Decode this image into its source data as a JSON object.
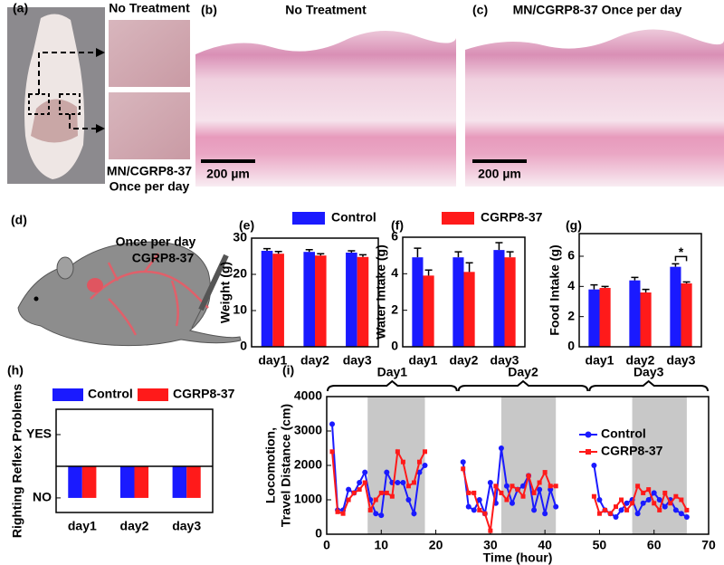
{
  "panels": {
    "a": {
      "label": "(a)",
      "top": "No Treatment",
      "bottom": [
        "MN/CGRP8-37",
        "Once per day"
      ]
    },
    "b": {
      "label": "(b)",
      "title": "No Treatment",
      "scale_bar": "200 µm"
    },
    "c": {
      "label": "(c)",
      "title": "MN/CGRP8-37 Once per day",
      "scale_bar": "200 µm"
    },
    "d": {
      "label": "(d)",
      "dose": "Once per day",
      "drug": "CGRP8-37"
    }
  },
  "chart_data": [
    {
      "type": "bar",
      "panel": "(e)",
      "ylabel": "Weight (g)",
      "categories": [
        "day1",
        "day2",
        "day3"
      ],
      "series": [
        {
          "name": "Control",
          "color": "#1a1aff",
          "values": [
            26.5,
            26.2,
            26.0
          ],
          "errors": [
            0.6,
            0.6,
            0.5
          ]
        },
        {
          "name": "CGRP8-37",
          "color": "#ff1a1a",
          "values": [
            25.7,
            25.2,
            24.8
          ],
          "errors": [
            0.6,
            0.5,
            0.6
          ]
        }
      ],
      "ylim": [
        0,
        30
      ],
      "yticks": [
        0,
        10,
        20,
        30
      ]
    },
    {
      "type": "bar",
      "panel": "(f)",
      "ylabel": "Water Intake (g)",
      "categories": [
        "day1",
        "day2",
        "day3"
      ],
      "series": [
        {
          "color": "#1a1aff",
          "values": [
            4.9,
            4.9,
            5.3
          ],
          "errors": [
            0.5,
            0.3,
            0.4
          ]
        },
        {
          "color": "#ff1a1a",
          "values": [
            3.9,
            4.1,
            4.9
          ],
          "errors": [
            0.3,
            0.5,
            0.3
          ]
        }
      ],
      "ylim": [
        0,
        6
      ],
      "yticks": [
        0,
        2,
        4,
        6
      ]
    },
    {
      "type": "bar",
      "panel": "(g)",
      "ylabel": "Food Intake (g)",
      "categories": [
        "day1",
        "day2",
        "day3"
      ],
      "series": [
        {
          "color": "#1a1aff",
          "values": [
            3.8,
            4.4,
            5.3
          ],
          "errors": [
            0.3,
            0.2,
            0.2
          ]
        },
        {
          "color": "#ff1a1a",
          "values": [
            3.9,
            3.6,
            4.2
          ],
          "errors": [
            0.1,
            0.2,
            0.1
          ]
        }
      ],
      "ylim": [
        0,
        7.5
      ],
      "yticks": [
        0,
        2,
        4,
        6
      ],
      "annotations": [
        {
          "text": "*",
          "category": "day3"
        }
      ]
    },
    {
      "type": "bar",
      "panel": "(h)",
      "ylabel": "Righting Reflex Problems",
      "categories": [
        "day1",
        "day2",
        "day3"
      ],
      "series": [
        {
          "name": "Control",
          "color": "#1a1aff",
          "values": [
            0,
            0,
            0
          ]
        },
        {
          "name": "CGRP8-37",
          "color": "#ff1a1a",
          "values": [
            0,
            0,
            0
          ]
        }
      ],
      "baseline": 0.5,
      "ylim": [
        -0.23,
        1.4
      ],
      "yticks": [
        {
          "value": 0,
          "label": "NO"
        },
        {
          "value": 1,
          "label": "YES"
        }
      ]
    },
    {
      "type": "line",
      "panel": "(i)",
      "ylabel": [
        "Locomotion,",
        "Travel Distance (cm)"
      ],
      "xlabel": "Time (hour)",
      "x": [
        1,
        2,
        3,
        4,
        5,
        6,
        7,
        8,
        9,
        10,
        11,
        12,
        13,
        14,
        15,
        16,
        17,
        18,
        21,
        25,
        26,
        27,
        28,
        29,
        30,
        31,
        32,
        33,
        34,
        35,
        36,
        37,
        38,
        39,
        40,
        41,
        42,
        45,
        49,
        50,
        51,
        52,
        53,
        54,
        55,
        56,
        57,
        58,
        59,
        60,
        61,
        62,
        63,
        64,
        65,
        66
      ],
      "series": [
        {
          "name": "Control",
          "color": "#1a1aff",
          "marker": "circle",
          "values": [
            3200,
            700,
            700,
            1300,
            1200,
            1500,
            1800,
            1000,
            600,
            550,
            1800,
            1500,
            1500,
            1500,
            1000,
            600,
            1800,
            2000,
            null,
            2100,
            800,
            700,
            1000,
            600,
            1500,
            900,
            2500,
            1400,
            900,
            1300,
            1400,
            1700,
            700,
            1300,
            600,
            1300,
            800,
            null,
            2000,
            1000,
            700,
            600,
            500,
            700,
            900,
            1000,
            600,
            900,
            1000,
            1200,
            1000,
            800,
            1000,
            700,
            600,
            500
          ]
        },
        {
          "name": "CGRP8-37",
          "color": "#ff1a1a",
          "marker": "square",
          "values": [
            2400,
            650,
            600,
            1000,
            1200,
            1300,
            1500,
            700,
            1000,
            1200,
            1200,
            1100,
            2400,
            2100,
            1400,
            1500,
            2100,
            2400,
            null,
            1900,
            1200,
            1200,
            700,
            600,
            100,
            1400,
            1200,
            1000,
            1400,
            1300,
            1100,
            1700,
            1200,
            1500,
            1800,
            1400,
            1400,
            null,
            1100,
            600,
            700,
            600,
            800,
            1000,
            700,
            900,
            1400,
            1200,
            1300,
            900,
            700,
            1200,
            900,
            1100,
            1000,
            700
          ]
        }
      ],
      "shaded": [
        [
          7.5,
          18
        ],
        [
          32,
          42
        ],
        [
          56,
          66
        ]
      ],
      "periods": [
        {
          "label": "Day1",
          "range": [
            0,
            24
          ]
        },
        {
          "label": "Day2",
          "range": [
            24,
            48
          ]
        },
        {
          "label": "Day3",
          "range": [
            48,
            70
          ]
        }
      ],
      "xlim": [
        0,
        70
      ],
      "xticks": [
        0,
        10,
        20,
        30,
        40,
        50,
        60,
        70
      ],
      "ylim": [
        0,
        4000
      ],
      "yticks": [
        0,
        1000,
        2000,
        3000,
        4000
      ]
    }
  ]
}
